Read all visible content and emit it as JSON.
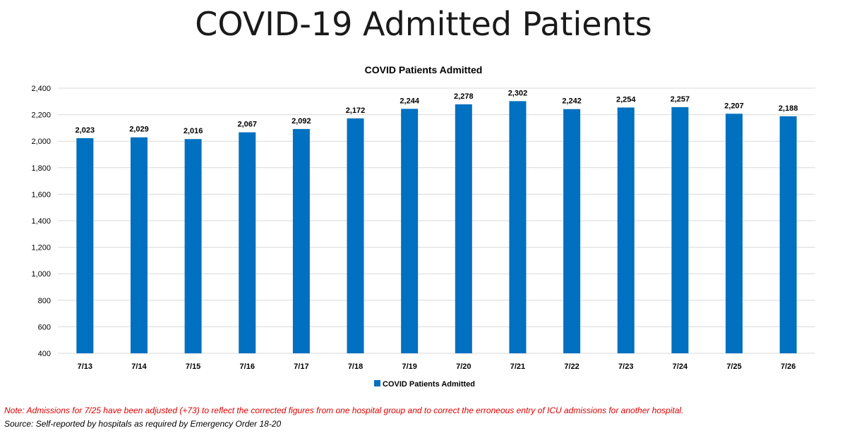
{
  "slide": {
    "title": "COVID-19 Admitted Patients",
    "note": "Note: Admissions for 7/25 have been adjusted (+73) to reflect the corrected figures from one hospital group and to correct the erroneous entry of ICU admissions for another hospital.",
    "source": "Source: Self-reported by hospitals as required by Emergency Order 18-20"
  },
  "colors": {
    "bar": "#0070C0",
    "note": "#E00000",
    "grid": "#D9D9D9"
  },
  "chart_data": {
    "type": "bar",
    "title": "COVID Patients Admitted",
    "xlabel": "",
    "ylabel": "",
    "categories": [
      "7/13",
      "7/14",
      "7/15",
      "7/16",
      "7/17",
      "7/18",
      "7/19",
      "7/20",
      "7/21",
      "7/22",
      "7/23",
      "7/24",
      "7/25",
      "7/26"
    ],
    "series": [
      {
        "name": "COVID Patients Admitted",
        "values": [
          2023,
          2029,
          2016,
          2067,
          2092,
          2172,
          2244,
          2278,
          2302,
          2242,
          2254,
          2257,
          2207,
          2188
        ],
        "labels": [
          "2,023",
          "2,029",
          "2,016",
          "2,067",
          "2,092",
          "2,172",
          "2,244",
          "2,278",
          "2,302",
          "2,242",
          "2,254",
          "2,257",
          "2,207",
          "2,188"
        ]
      }
    ],
    "ylim": [
      400,
      2400
    ],
    "yticks": [
      400,
      600,
      800,
      1000,
      1200,
      1400,
      1600,
      1800,
      2000,
      2200,
      2400
    ],
    "ytick_labels": [
      "400",
      "600",
      "800",
      "1,000",
      "1,200",
      "1,400",
      "1,600",
      "1,800",
      "2,000",
      "2,200",
      "2,400"
    ],
    "grid": true,
    "legend": "bottom"
  }
}
